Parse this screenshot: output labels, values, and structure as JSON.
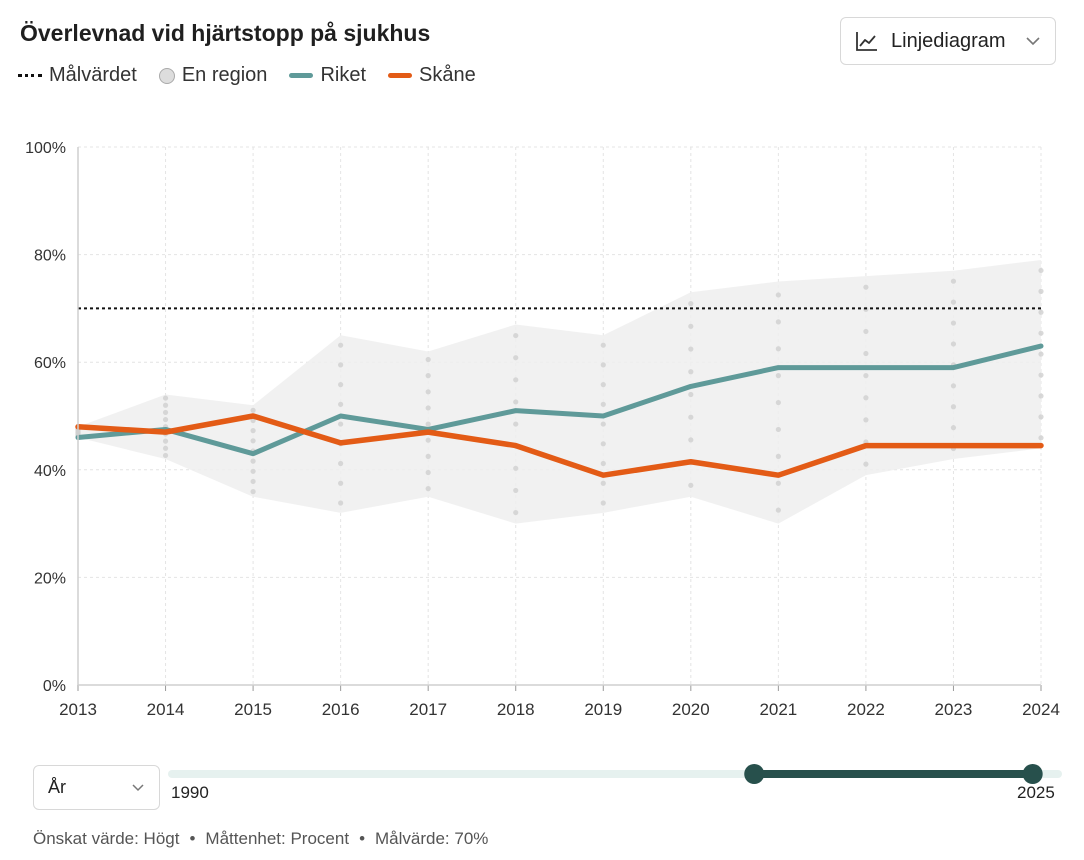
{
  "title": "Överlevnad vid hjärtstopp på sjukhus",
  "legend": {
    "target": "Målvärdet",
    "region": "En region",
    "riket": "Riket",
    "skane": "Skåne"
  },
  "chart_type_select": {
    "label": "Linjediagram",
    "icon": "line-chart-icon"
  },
  "range": {
    "select_label": "År",
    "min_label": "1990",
    "max_label": "2025",
    "min": 1990,
    "max": 2025,
    "selected_from": 2013,
    "selected_to": 2024
  },
  "footer": {
    "desired": "Önskat värde: Högt",
    "unit": "Måttenhet: Procent",
    "target": "Målvärde: 70%",
    "separator": "•"
  },
  "colors": {
    "riket": "#5f9a99",
    "skane": "#e35b16",
    "band": "#eeeeee",
    "slider": "#27504c",
    "slider_track": "#e6f1ef"
  },
  "chart_data": {
    "type": "line",
    "x": [
      2013,
      2014,
      2015,
      2016,
      2017,
      2018,
      2019,
      2020,
      2021,
      2022,
      2023,
      2024
    ],
    "ylim": [
      0,
      100
    ],
    "yticks": [
      "0%",
      "20%",
      "40%",
      "60%",
      "80%",
      "100%"
    ],
    "target": 70,
    "band": {
      "name": "En region",
      "upper": [
        48,
        54,
        52,
        65,
        62,
        67,
        65,
        73,
        75,
        76,
        77,
        79
      ],
      "lower": [
        46,
        42,
        35,
        32,
        35,
        30,
        32,
        35,
        30,
        39,
        42,
        44
      ]
    },
    "series": [
      {
        "name": "Riket",
        "values": [
          46,
          47.5,
          43,
          50,
          47.5,
          51,
          50,
          55.5,
          59,
          59,
          59,
          63
        ]
      },
      {
        "name": "Skåne",
        "values": [
          48,
          47,
          50,
          45,
          47,
          44.5,
          39,
          41.5,
          39,
          44.5,
          44.5,
          44.5
        ]
      }
    ]
  }
}
